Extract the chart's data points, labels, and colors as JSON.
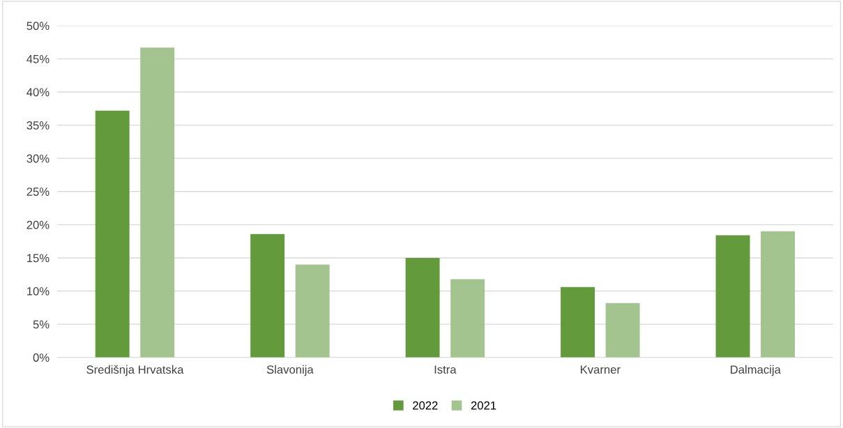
{
  "chart_data": {
    "type": "bar",
    "categories": [
      "Središnja Hrvatska",
      "Slavonija",
      "Istra",
      "Kvarner",
      "Dalmacija"
    ],
    "series": [
      {
        "name": "2022",
        "color": "#629a3c",
        "values": [
          37.2,
          18.6,
          15.0,
          10.6,
          18.4
        ]
      },
      {
        "name": "2021",
        "color": "#a3c48f",
        "values": [
          46.7,
          14.0,
          11.8,
          8.2,
          19.0
        ]
      }
    ],
    "ylim": [
      0,
      50
    ],
    "yticks": [
      {
        "value": 0,
        "label": "0%"
      },
      {
        "value": 5,
        "label": "5%"
      },
      {
        "value": 10,
        "label": "10%"
      },
      {
        "value": 15,
        "label": "15%"
      },
      {
        "value": 20,
        "label": "20%"
      },
      {
        "value": 25,
        "label": "25%"
      },
      {
        "value": 30,
        "label": "30%"
      },
      {
        "value": 35,
        "label": "35%"
      },
      {
        "value": 40,
        "label": "40%"
      },
      {
        "value": 45,
        "label": "45%"
      },
      {
        "value": 50,
        "label": "50%"
      }
    ],
    "grid": "y",
    "legend": "bottom"
  }
}
